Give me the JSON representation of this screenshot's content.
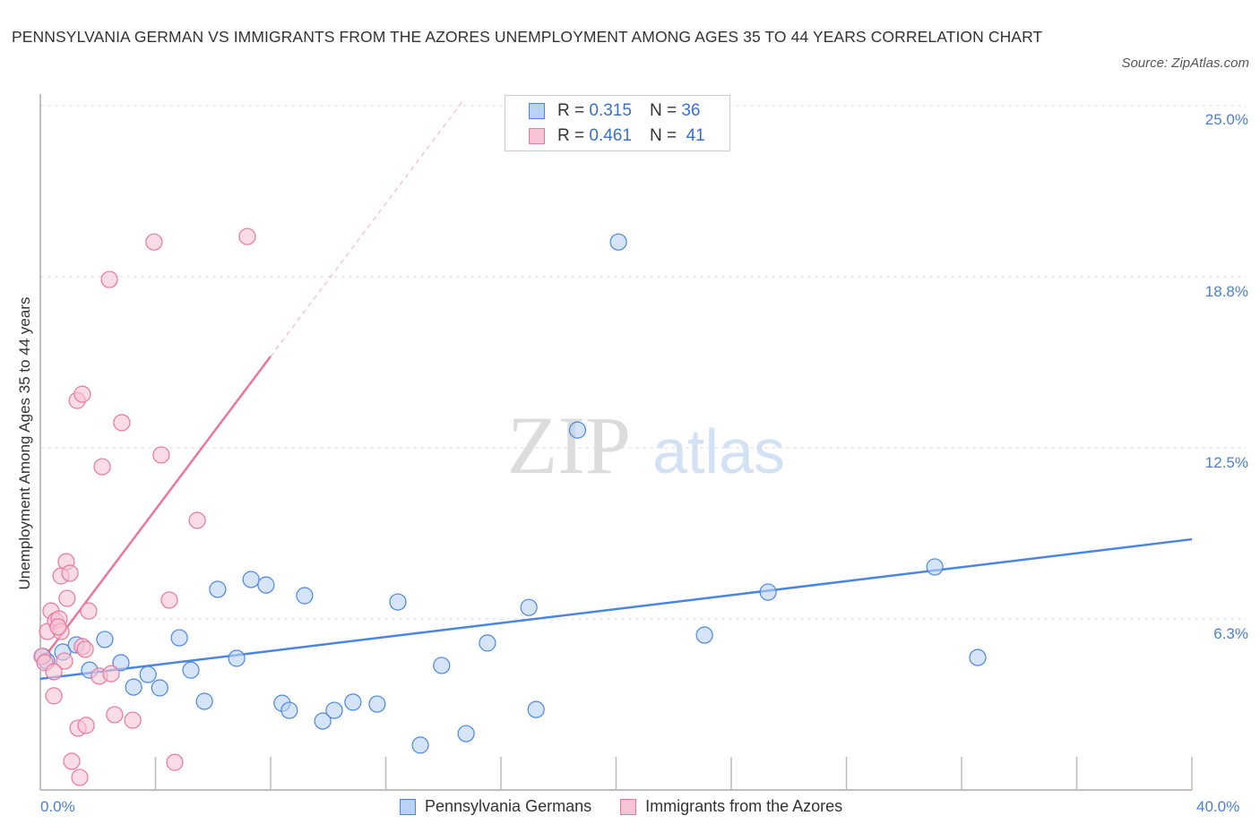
{
  "title": "PENNSYLVANIA GERMAN VS IMMIGRANTS FROM THE AZORES UNEMPLOYMENT AMONG AGES 35 TO 44 YEARS CORRELATION CHART",
  "source": "Source: ZipAtlas.com",
  "watermark": "ZIPatlas",
  "chart_data": {
    "type": "scatter",
    "title": "PENNSYLVANIA GERMAN VS IMMIGRANTS FROM THE AZORES UNEMPLOYMENT AMONG AGES 35 TO 44 YEARS CORRELATION CHART",
    "xlabel": "",
    "ylabel": "Unemployment Among Ages 35 to 44 years",
    "xlim": [
      0,
      40
    ],
    "ylim": [
      0,
      25
    ],
    "x_tick_labels": [
      "0.0%",
      "40.0%"
    ],
    "y_ticks": [
      6.25,
      12.5,
      18.75,
      25
    ],
    "y_tick_labels": [
      "6.3%",
      "12.5%",
      "18.8%",
      "25.0%"
    ],
    "grid": true,
    "legend_placement": "top-center",
    "series": [
      {
        "name": "Pennsylvania Germans",
        "color": "#4a86e0",
        "fill": "#b9d2f5",
        "R": "0.315",
        "N": "36",
        "trend": {
          "x": [
            0,
            40
          ],
          "y": [
            4.06,
            9.16
          ]
        },
        "points": [
          [
            0.09,
            4.88
          ],
          [
            0.22,
            4.71
          ],
          [
            0.78,
            5.04
          ],
          [
            1.25,
            5.3
          ],
          [
            1.71,
            4.38
          ],
          [
            2.24,
            5.5
          ],
          [
            2.8,
            4.65
          ],
          [
            3.24,
            3.76
          ],
          [
            3.74,
            4.22
          ],
          [
            4.15,
            3.73
          ],
          [
            4.83,
            5.56
          ],
          [
            5.23,
            4.38
          ],
          [
            5.7,
            3.24
          ],
          [
            6.16,
            7.33
          ],
          [
            6.82,
            4.81
          ],
          [
            7.32,
            7.69
          ],
          [
            7.84,
            7.49
          ],
          [
            8.4,
            3.17
          ],
          [
            8.65,
            2.91
          ],
          [
            9.18,
            7.1
          ],
          [
            9.81,
            2.52
          ],
          [
            10.21,
            2.91
          ],
          [
            10.86,
            3.21
          ],
          [
            11.7,
            3.14
          ],
          [
            12.42,
            6.87
          ],
          [
            13.2,
            1.64
          ],
          [
            13.94,
            4.55
          ],
          [
            14.79,
            2.06
          ],
          [
            15.53,
            5.37
          ],
          [
            16.97,
            6.67
          ],
          [
            17.22,
            2.94
          ],
          [
            18.66,
            13.15
          ],
          [
            20.08,
            20.02
          ],
          [
            23.07,
            5.66
          ],
          [
            25.28,
            7.23
          ],
          [
            31.07,
            8.15
          ],
          [
            32.56,
            4.84
          ]
        ]
      },
      {
        "name": "Immigrants from the Azores",
        "color": "#e8779a",
        "fill": "#f7c5d4",
        "R": "0.461",
        "N": "41",
        "trend": {
          "x": [
            0,
            8.0
          ],
          "y": [
            4.65,
            15.84
          ]
        },
        "trend_extension": {
          "x": [
            8.0,
            14.7
          ],
          "y": [
            15.84,
            25.2
          ]
        },
        "points": [
          [
            0.06,
            4.88
          ],
          [
            0.16,
            4.65
          ],
          [
            0.25,
            5.79
          ],
          [
            0.37,
            6.54
          ],
          [
            0.47,
            3.44
          ],
          [
            0.53,
            6.18
          ],
          [
            0.65,
            6.25
          ],
          [
            0.72,
            7.82
          ],
          [
            0.72,
            5.79
          ],
          [
            0.84,
            4.71
          ],
          [
            0.9,
            8.34
          ],
          [
            0.93,
            7.0
          ],
          [
            1.03,
            7.92
          ],
          [
            1.09,
            1.05
          ],
          [
            1.28,
            14.23
          ],
          [
            1.31,
            2.26
          ],
          [
            1.46,
            14.46
          ],
          [
            1.46,
            5.24
          ],
          [
            1.59,
            2.36
          ],
          [
            1.68,
            6.54
          ],
          [
            2.05,
            4.16
          ],
          [
            2.15,
            11.81
          ],
          [
            2.4,
            18.65
          ],
          [
            2.46,
            4.25
          ],
          [
            2.58,
            2.75
          ],
          [
            2.83,
            13.42
          ],
          [
            3.21,
            2.55
          ],
          [
            3.95,
            20.02
          ],
          [
            4.2,
            12.24
          ],
          [
            4.48,
            6.94
          ],
          [
            4.67,
            1.01
          ],
          [
            5.45,
            9.85
          ],
          [
            7.19,
            20.22
          ],
          [
            1.37,
            0.46
          ],
          [
            0.47,
            4.32
          ],
          [
            0.62,
            5.96
          ],
          [
            1.56,
            5.14
          ]
        ]
      }
    ]
  },
  "legend": {
    "r_label": "R =",
    "n_label": "N =",
    "blue_r": "0.315",
    "blue_n": "36",
    "pink_r": "0.461",
    "pink_n": "41",
    "blue_name": "Pennsylvania Germans",
    "pink_name": "Immigrants from the Azores"
  }
}
